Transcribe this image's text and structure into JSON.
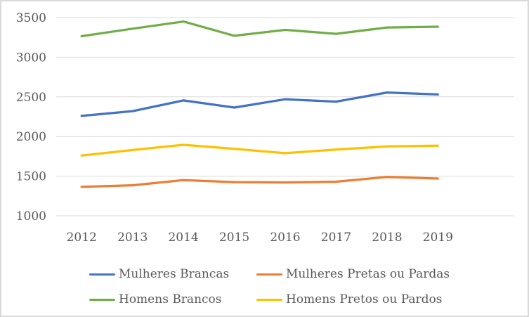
{
  "chart": {
    "background": "#ffffff",
    "border_color": "#d9d9d9",
    "gridline_color": "#d9d9d9",
    "text_color": "#595959"
  },
  "chart_data": {
    "type": "line",
    "categories": [
      "2012",
      "2013",
      "2014",
      "2015",
      "2016",
      "2017",
      "2018",
      "2019"
    ],
    "series": [
      {
        "name": "Mulheres Brancas",
        "color": "#4472C4",
        "values": [
          2260,
          2320,
          2455,
          2365,
          2470,
          2440,
          2555,
          2530
        ]
      },
      {
        "name": "Mulheres Pretas ou Pardas",
        "color": "#ED7D31",
        "values": [
          1365,
          1385,
          1450,
          1425,
          1420,
          1430,
          1490,
          1470
        ]
      },
      {
        "name": "Homens Brancos",
        "color": "#70AD47",
        "values": [
          3265,
          3360,
          3450,
          3270,
          3345,
          3295,
          3375,
          3385
        ]
      },
      {
        "name": "Homens Pretos ou Pardos",
        "color": "#FFC000",
        "values": [
          1760,
          1830,
          1895,
          1845,
          1790,
          1835,
          1875,
          1885
        ]
      }
    ],
    "ylim": [
      1000,
      3500
    ],
    "y_ticks": [
      3500,
      3000,
      2500,
      2000,
      1500,
      1000
    ],
    "grid": true,
    "legend_position": "bottom",
    "xlabel": "",
    "ylabel": ""
  }
}
